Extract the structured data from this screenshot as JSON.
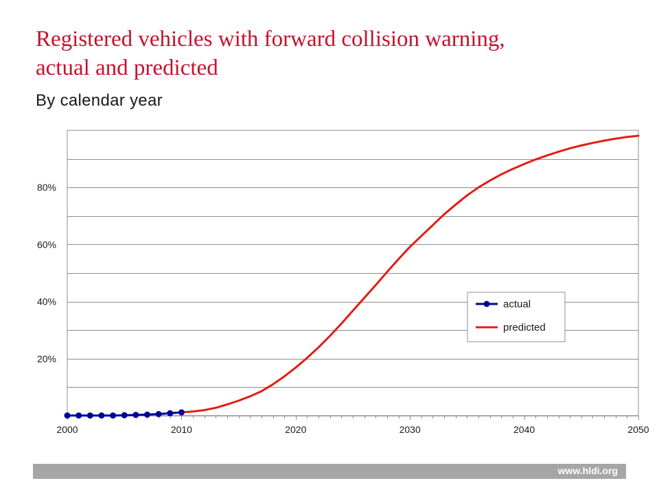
{
  "header": {
    "title_line1": "Registered vehicles with forward collision warning,",
    "title_line2": "actual and predicted",
    "subtitle": "By calendar year"
  },
  "footer": {
    "url": "www.hldi.org"
  },
  "colors": {
    "title": "#c8102e",
    "actual": "#000099",
    "predicted": "#e31b12",
    "footer_bar": "#a6a6a6"
  },
  "chart_data": {
    "type": "line",
    "title": "Registered vehicles with forward collision warning, actual and predicted",
    "subtitle": "By calendar year",
    "xlabel": "",
    "ylabel": "",
    "xlim": [
      2000,
      2050
    ],
    "ylim": [
      0,
      100
    ],
    "x_ticks": [
      2000,
      2010,
      2020,
      2030,
      2040,
      2050
    ],
    "x_tick_labels": [
      "2000",
      "2010",
      "2020",
      "2030",
      "2040",
      "2050"
    ],
    "y_ticks": [
      20,
      40,
      60,
      80
    ],
    "y_tick_labels": [
      "20%",
      "40%",
      "60%",
      "80%"
    ],
    "y_gridlines": [
      10,
      20,
      30,
      40,
      50,
      60,
      70,
      80,
      90,
      100
    ],
    "grid": true,
    "legend_position": "right",
    "series": [
      {
        "name": "actual",
        "style": "line-with-markers",
        "color": "#000099",
        "x": [
          2000,
          2001,
          2002,
          2003,
          2004,
          2005,
          2006,
          2007,
          2008,
          2009,
          2010
        ],
        "y": [
          0.1,
          0.1,
          0.1,
          0.1,
          0.1,
          0.2,
          0.3,
          0.4,
          0.6,
          0.9,
          1.2
        ]
      },
      {
        "name": "predicted",
        "style": "line",
        "color": "#e31b12",
        "x": [
          2010,
          2011,
          2012,
          2013,
          2014,
          2015,
          2016,
          2017,
          2018,
          2019,
          2020,
          2021,
          2022,
          2023,
          2024,
          2025,
          2026,
          2027,
          2028,
          2029,
          2030,
          2031,
          2032,
          2033,
          2034,
          2035,
          2036,
          2037,
          2038,
          2039,
          2040,
          2041,
          2042,
          2043,
          2044,
          2045,
          2046,
          2047,
          2048,
          2049,
          2050
        ],
        "y": [
          1.2,
          1.5,
          2.0,
          2.8,
          4.0,
          5.3,
          6.8,
          8.6,
          11.0,
          13.8,
          16.9,
          20.3,
          24.0,
          28.0,
          32.3,
          36.8,
          41.3,
          45.8,
          50.4,
          54.9,
          59.2,
          63.0,
          66.8,
          70.6,
          74.0,
          77.2,
          80.0,
          82.4,
          84.6,
          86.5,
          88.2,
          89.8,
          91.2,
          92.5,
          93.7,
          94.7,
          95.6,
          96.4,
          97.1,
          97.7,
          98.1
        ]
      }
    ]
  }
}
